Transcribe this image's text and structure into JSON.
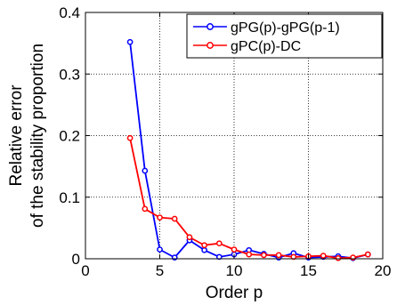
{
  "chart_data": {
    "type": "line",
    "xlabel": "Order p",
    "ylabel_lines": [
      "Relative error",
      "of the stability proportion"
    ],
    "xlim": [
      0,
      20
    ],
    "ylim": [
      0,
      0.4
    ],
    "xticks": [
      0,
      5,
      10,
      15,
      20
    ],
    "yticks": [
      0,
      0.1,
      0.2,
      0.3,
      0.4
    ],
    "xtick_labels": [
      "0",
      "5",
      "10",
      "15",
      "20"
    ],
    "ytick_labels": [
      "0",
      "0.1",
      "0.2",
      "0.3",
      "0.4"
    ],
    "grid": true,
    "legend_position": "top-right",
    "series": [
      {
        "name": "gPG(p)-gPG(p-1)",
        "color": "#0000ff",
        "marker": "circle",
        "x": [
          3,
          4,
          5,
          6,
          7,
          8,
          9,
          10,
          11,
          12,
          13,
          14,
          15,
          16,
          17,
          18,
          19
        ],
        "y": [
          0.352,
          0.143,
          0.015,
          0.002,
          0.03,
          0.014,
          0.003,
          0.007,
          0.014,
          0.008,
          0.002,
          0.009,
          0.002,
          0.003,
          0.004,
          0.001,
          0.007
        ]
      },
      {
        "name": "gPC(p)-DC",
        "color": "#ff0000",
        "marker": "circle",
        "x": [
          3,
          4,
          5,
          6,
          7,
          8,
          9,
          10,
          11,
          12,
          13,
          14,
          15,
          16,
          17,
          18,
          19
        ],
        "y": [
          0.196,
          0.081,
          0.067,
          0.065,
          0.035,
          0.022,
          0.025,
          0.015,
          0.007,
          0.006,
          0.006,
          0.003,
          0.004,
          0.005,
          0.001,
          0.002,
          0.007
        ]
      }
    ]
  }
}
